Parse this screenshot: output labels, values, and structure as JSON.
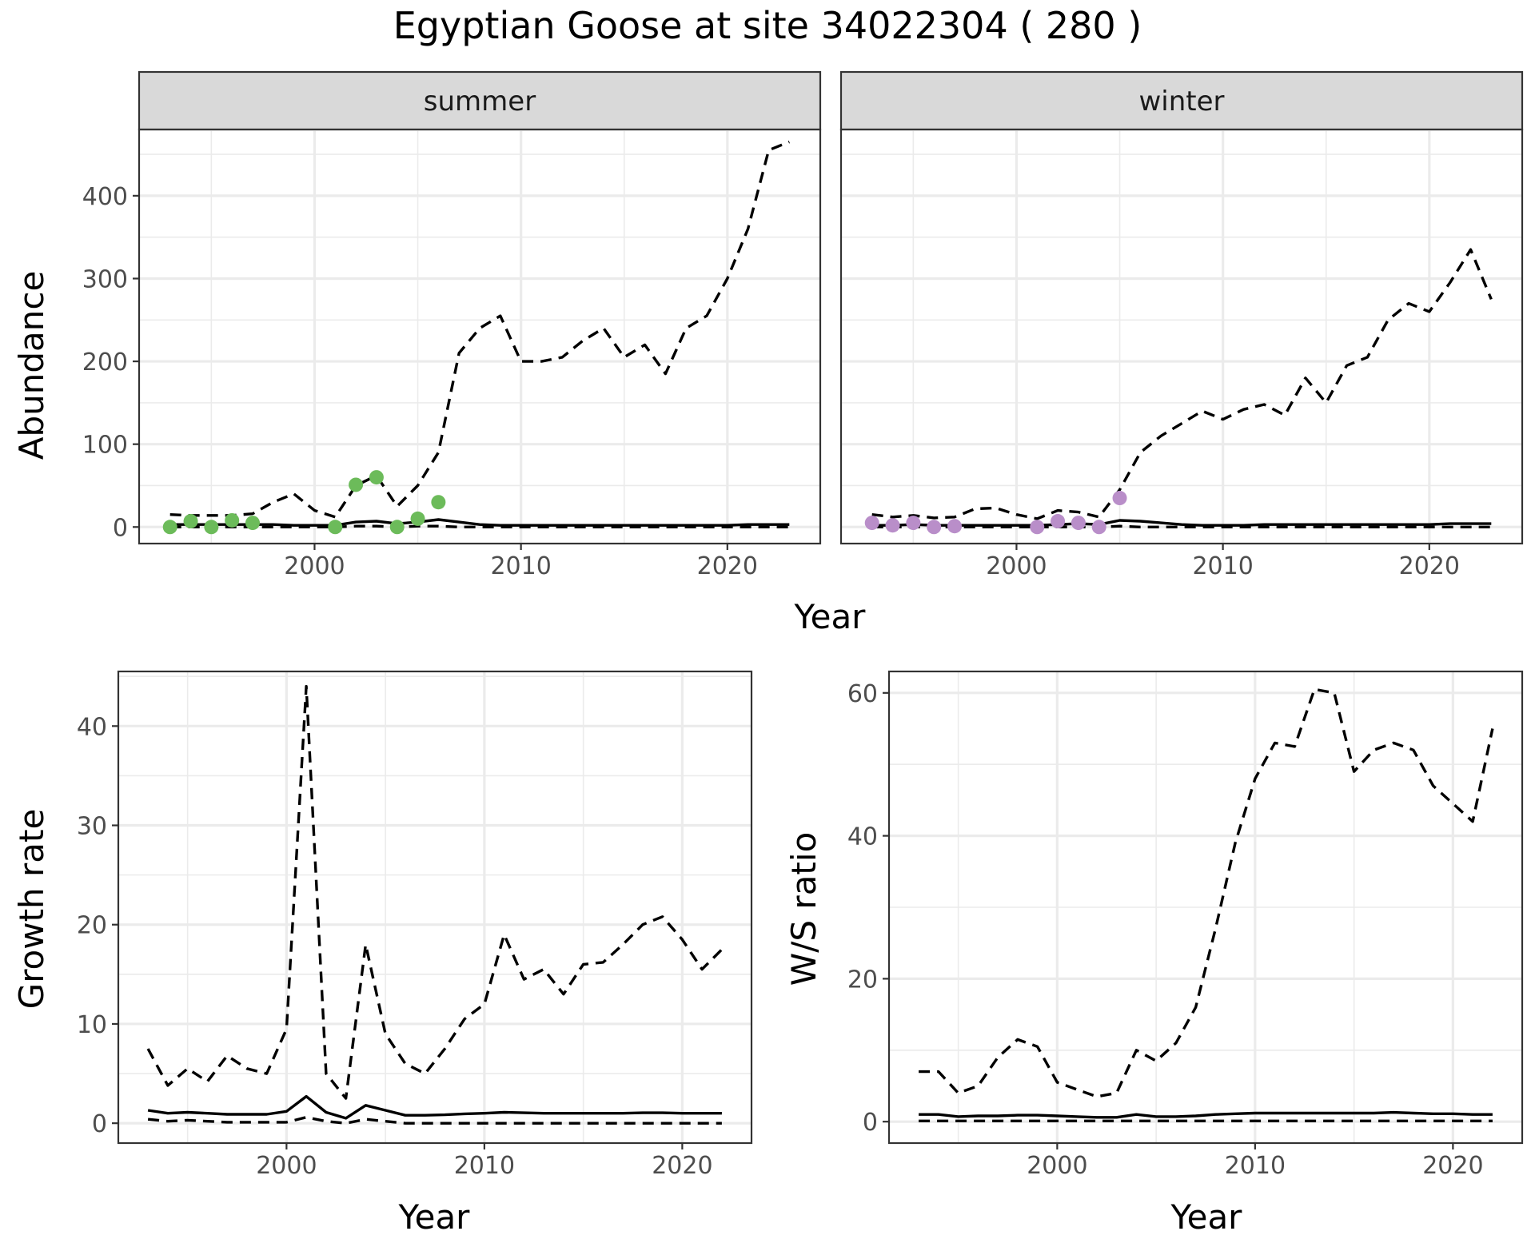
{
  "title": "Egyptian Goose at site 34022304 ( 280 )",
  "colors": {
    "summer_points": "#6cbb5a",
    "winter_points": "#b98ec9",
    "lines": "#000000"
  },
  "chart_data": [
    {
      "type": "line",
      "facet": "summer",
      "xlabel": "Year",
      "ylabel": "Abundance",
      "xlim": [
        1991.5,
        2024.5
      ],
      "ylim": [
        -20,
        480
      ],
      "xticks": [
        2000,
        2010,
        2020
      ],
      "yticks": [
        0,
        100,
        200,
        300,
        400
      ],
      "points_color": "#6cbb5a",
      "points": {
        "x": [
          1993,
          1994,
          1995,
          1996,
          1997,
          2001,
          2002,
          2003,
          2004,
          2005,
          2006
        ],
        "y": [
          0,
          7,
          0,
          8,
          5,
          0,
          51,
          60,
          0,
          10,
          30
        ]
      },
      "series": [
        {
          "style": "dashed",
          "x": [
            1993,
            1994,
            1995,
            1996,
            1997,
            1998,
            1999,
            2000,
            2001,
            2002,
            2003,
            2004,
            2005,
            2006,
            2007,
            2008,
            2009,
            2010,
            2011,
            2012,
            2013,
            2014,
            2015,
            2016,
            2017,
            2018,
            2019,
            2020,
            2021,
            2022,
            2023
          ],
          "y": [
            15,
            14,
            14,
            14,
            16,
            30,
            40,
            20,
            12,
            50,
            62,
            25,
            50,
            90,
            210,
            240,
            255,
            200,
            200,
            205,
            225,
            240,
            205,
            220,
            185,
            240,
            255,
            300,
            360,
            455,
            465
          ]
        },
        {
          "style": "solid",
          "x": [
            1993,
            1994,
            1995,
            1996,
            1997,
            1998,
            1999,
            2000,
            2001,
            2002,
            2003,
            2004,
            2005,
            2006,
            2007,
            2008,
            2009,
            2010,
            2011,
            2012,
            2013,
            2014,
            2015,
            2016,
            2017,
            2018,
            2019,
            2020,
            2021,
            2022,
            2023
          ],
          "y": [
            3,
            3,
            3,
            3,
            3,
            3,
            2,
            2,
            2,
            6,
            7,
            4,
            6,
            9,
            6,
            3,
            2,
            2,
            2,
            2,
            2,
            2,
            2,
            2,
            2,
            2,
            2,
            2,
            3,
            3,
            3
          ]
        },
        {
          "style": "dashed",
          "x": [
            1993,
            1994,
            1995,
            1996,
            1997,
            1998,
            1999,
            2000,
            2001,
            2002,
            2003,
            2004,
            2005,
            2006,
            2007,
            2008,
            2009,
            2010,
            2011,
            2012,
            2013,
            2014,
            2015,
            2016,
            2017,
            2018,
            2019,
            2020,
            2021,
            2022,
            2023
          ],
          "y": [
            0,
            0,
            0,
            0,
            0,
            0,
            0,
            0,
            0,
            1,
            1,
            0,
            1,
            1,
            0,
            0,
            0,
            0,
            0,
            0,
            0,
            0,
            0,
            0,
            0,
            0,
            0,
            0,
            0,
            0,
            0
          ]
        }
      ]
    },
    {
      "type": "line",
      "facet": "winter",
      "xlabel": "Year",
      "ylabel": "Abundance",
      "xlim": [
        1991.5,
        2024.5
      ],
      "ylim": [
        -20,
        480
      ],
      "xticks": [
        2000,
        2010,
        2020
      ],
      "yticks": [
        0,
        100,
        200,
        300,
        400
      ],
      "points_color": "#b98ec9",
      "points": {
        "x": [
          1993,
          1994,
          1995,
          1996,
          1997,
          2001,
          2002,
          2003,
          2004,
          2005
        ],
        "y": [
          5,
          2,
          5,
          0,
          1,
          0,
          7,
          5,
          0,
          35
        ]
      },
      "series": [
        {
          "style": "dashed",
          "x": [
            1993,
            1994,
            1995,
            1996,
            1997,
            1998,
            1999,
            2000,
            2001,
            2002,
            2003,
            2004,
            2005,
            2006,
            2007,
            2008,
            2009,
            2010,
            2011,
            2012,
            2013,
            2014,
            2015,
            2016,
            2017,
            2018,
            2019,
            2020,
            2021,
            2022,
            2023
          ],
          "y": [
            15,
            12,
            14,
            11,
            12,
            22,
            23,
            15,
            10,
            20,
            18,
            12,
            45,
            90,
            110,
            125,
            140,
            130,
            142,
            148,
            135,
            180,
            150,
            195,
            205,
            250,
            270,
            260,
            295,
            335,
            275
          ]
        },
        {
          "style": "solid",
          "x": [
            1993,
            1994,
            1995,
            1996,
            1997,
            1998,
            1999,
            2000,
            2001,
            2002,
            2003,
            2004,
            2005,
            2006,
            2007,
            2008,
            2009,
            2010,
            2011,
            2012,
            2013,
            2014,
            2015,
            2016,
            2017,
            2018,
            2019,
            2020,
            2021,
            2022,
            2023
          ],
          "y": [
            2,
            2,
            3,
            2,
            2,
            2,
            2,
            2,
            2,
            3,
            4,
            3,
            8,
            7,
            5,
            3,
            2,
            2,
            2,
            3,
            3,
            3,
            3,
            3,
            3,
            3,
            3,
            3,
            4,
            4,
            4
          ]
        },
        {
          "style": "dashed",
          "x": [
            1993,
            1994,
            1995,
            1996,
            1997,
            1998,
            1999,
            2000,
            2001,
            2002,
            2003,
            2004,
            2005,
            2006,
            2007,
            2008,
            2009,
            2010,
            2011,
            2012,
            2013,
            2014,
            2015,
            2016,
            2017,
            2018,
            2019,
            2020,
            2021,
            2022,
            2023
          ],
          "y": [
            0,
            0,
            0,
            0,
            0,
            0,
            0,
            0,
            0,
            0,
            0,
            0,
            1,
            0,
            0,
            0,
            0,
            0,
            0,
            0,
            0,
            0,
            0,
            0,
            0,
            0,
            0,
            0,
            0,
            0,
            0
          ]
        }
      ]
    },
    {
      "type": "line",
      "xlabel": "Year",
      "ylabel": "Growth rate",
      "xlim": [
        1991.5,
        2023.5
      ],
      "ylim": [
        -2,
        45.5
      ],
      "xticks": [
        2000,
        2010,
        2020
      ],
      "yticks": [
        0,
        10,
        20,
        30,
        40
      ],
      "series": [
        {
          "style": "dashed",
          "x": [
            1993,
            1994,
            1995,
            1996,
            1997,
            1998,
            1999,
            2000,
            2001,
            2002,
            2003,
            2004,
            2005,
            2006,
            2007,
            2008,
            2009,
            2010,
            2011,
            2012,
            2013,
            2014,
            2015,
            2016,
            2017,
            2018,
            2019,
            2020,
            2021,
            2022
          ],
          "y": [
            7.5,
            3.8,
            5.5,
            4.2,
            6.8,
            5.5,
            5.0,
            9.5,
            44,
            5.0,
            2.5,
            18,
            9.0,
            6.0,
            5.0,
            7.5,
            10.5,
            12,
            19,
            14.5,
            15.5,
            13,
            16,
            16.2,
            18,
            20,
            20.8,
            18.5,
            15.5,
            17.5
          ]
        },
        {
          "style": "solid",
          "x": [
            1993,
            1994,
            1995,
            1996,
            1997,
            1998,
            1999,
            2000,
            2001,
            2002,
            2003,
            2004,
            2005,
            2006,
            2007,
            2008,
            2009,
            2010,
            2011,
            2012,
            2013,
            2014,
            2015,
            2016,
            2017,
            2018,
            2019,
            2020,
            2021,
            2022
          ],
          "y": [
            1.3,
            1.0,
            1.1,
            1.0,
            0.9,
            0.9,
            0.9,
            1.2,
            2.7,
            1.1,
            0.5,
            1.8,
            1.3,
            0.8,
            0.8,
            0.85,
            0.95,
            1.0,
            1.1,
            1.05,
            1.0,
            1.0,
            1.0,
            1.0,
            1.0,
            1.05,
            1.05,
            1.0,
            1.0,
            1.0
          ]
        },
        {
          "style": "dashed",
          "x": [
            1993,
            1994,
            1995,
            1996,
            1997,
            1998,
            1999,
            2000,
            2001,
            2002,
            2003,
            2004,
            2005,
            2006,
            2007,
            2008,
            2009,
            2010,
            2011,
            2012,
            2013,
            2014,
            2015,
            2016,
            2017,
            2018,
            2019,
            2020,
            2021,
            2022
          ],
          "y": [
            0.4,
            0.2,
            0.3,
            0.2,
            0.1,
            0.1,
            0.1,
            0.1,
            0.6,
            0.2,
            0.0,
            0.4,
            0.2,
            0.0,
            0.0,
            0.0,
            0.0,
            0.0,
            0.0,
            0.0,
            0.0,
            0.0,
            0.0,
            0.0,
            0.0,
            0.0,
            0.0,
            0.0,
            0.0,
            0.0
          ]
        }
      ]
    },
    {
      "type": "line",
      "xlabel": "Year",
      "ylabel": "W/S ratio",
      "xlim": [
        1991.5,
        2023.5
      ],
      "ylim": [
        -3,
        63
      ],
      "xticks": [
        2000,
        2010,
        2020
      ],
      "yticks": [
        0,
        20,
        40,
        60
      ],
      "series": [
        {
          "style": "dashed",
          "x": [
            1993,
            1994,
            1995,
            1996,
            1997,
            1998,
            1999,
            2000,
            2001,
            2002,
            2003,
            2004,
            2005,
            2006,
            2007,
            2008,
            2009,
            2010,
            2011,
            2012,
            2013,
            2014,
            2015,
            2016,
            2017,
            2018,
            2019,
            2020,
            2021,
            2022
          ],
          "y": [
            7,
            7,
            4,
            5,
            9,
            11.5,
            10.5,
            5.5,
            4.5,
            3.5,
            4,
            10,
            8.5,
            11,
            16,
            27,
            39,
            48,
            53,
            52.5,
            60.5,
            60,
            49,
            52,
            53,
            52,
            47,
            44.5,
            42,
            55
          ]
        },
        {
          "style": "solid",
          "x": [
            1993,
            1994,
            1995,
            1996,
            1997,
            1998,
            1999,
            2000,
            2001,
            2002,
            2003,
            2004,
            2005,
            2006,
            2007,
            2008,
            2009,
            2010,
            2011,
            2012,
            2013,
            2014,
            2015,
            2016,
            2017,
            2018,
            2019,
            2020,
            2021,
            2022
          ],
          "y": [
            1.0,
            1.0,
            0.7,
            0.8,
            0.8,
            0.9,
            0.9,
            0.8,
            0.7,
            0.6,
            0.6,
            1.0,
            0.7,
            0.7,
            0.8,
            1.0,
            1.1,
            1.2,
            1.2,
            1.2,
            1.2,
            1.2,
            1.2,
            1.2,
            1.3,
            1.2,
            1.1,
            1.1,
            1.0,
            1.0
          ]
        },
        {
          "style": "dashed",
          "x": [
            1993,
            1994,
            1995,
            1996,
            1997,
            1998,
            1999,
            2000,
            2001,
            2002,
            2003,
            2004,
            2005,
            2006,
            2007,
            2008,
            2009,
            2010,
            2011,
            2012,
            2013,
            2014,
            2015,
            2016,
            2017,
            2018,
            2019,
            2020,
            2021,
            2022
          ],
          "y": [
            0.1,
            0.1,
            0.1,
            0.1,
            0.1,
            0.1,
            0.1,
            0.1,
            0.1,
            0.1,
            0.1,
            0.1,
            0.1,
            0.1,
            0.1,
            0.1,
            0.1,
            0.1,
            0.1,
            0.1,
            0.1,
            0.1,
            0.1,
            0.1,
            0.1,
            0.1,
            0.1,
            0.1,
            0.1,
            0.1
          ]
        }
      ]
    }
  ]
}
